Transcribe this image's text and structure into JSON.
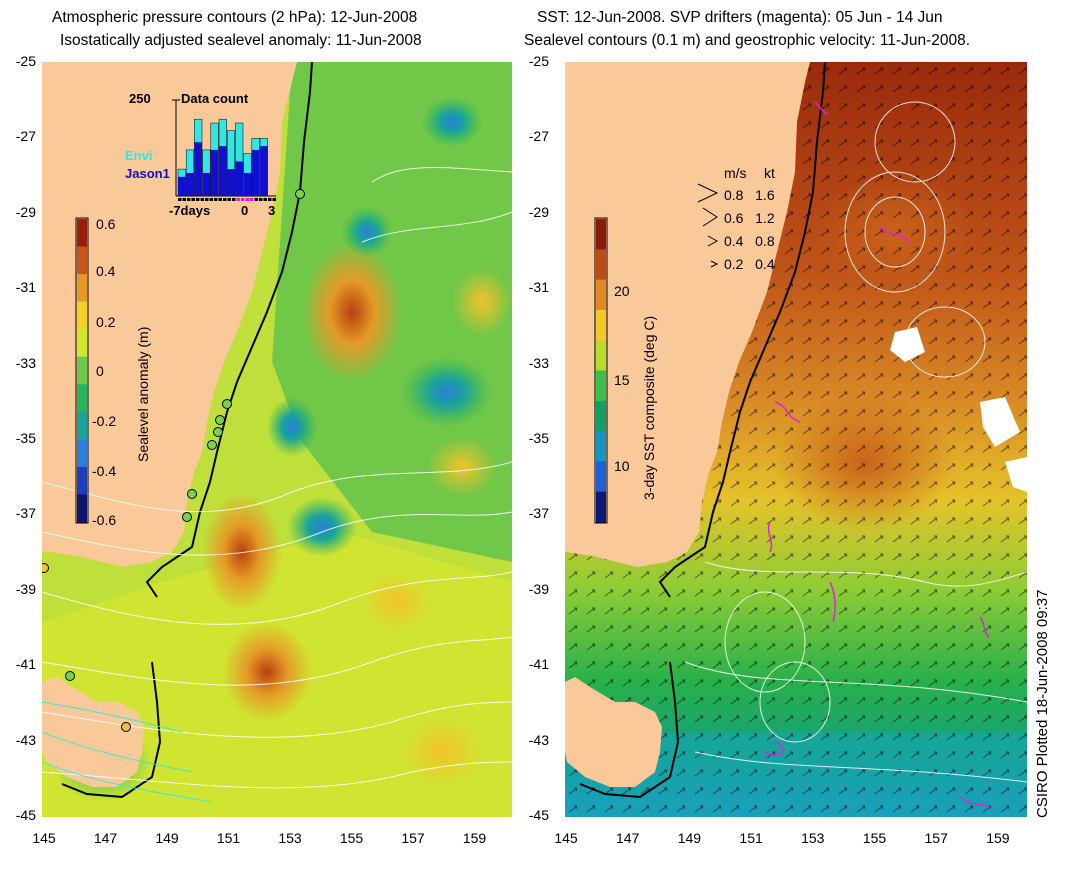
{
  "left_panel": {
    "title_line1": "Atmospheric pressure contours (2 hPa): 12-Jun-2008",
    "title_line2": "Isostatically adjusted sealevel anomaly: 11-Jun-2008",
    "colorbar": {
      "label": "Sealevel anomaly (m)",
      "ticks": [
        "0.6",
        "0.4",
        "0.2",
        "0",
        "-0.2",
        "-0.4",
        "-0.6"
      ],
      "colors": [
        "#9b1d0c",
        "#c8551a",
        "#e59a27",
        "#f4d02a",
        "#cfe82c",
        "#6cc84a",
        "#27b45c",
        "#1aa39a",
        "#2a7fd8",
        "#1b3fb8",
        "#0b1670"
      ]
    },
    "inset": {
      "title": "Data count",
      "max_label": "250",
      "legend_envi": "Envi",
      "legend_jason": "Jason1",
      "x_left": "-7days",
      "x_zero": "0",
      "x_right": "3",
      "envi_color": "#33e6e6",
      "jason_color": "#1010d0",
      "envi_values": [
        70,
        120,
        200,
        120,
        190,
        200,
        170,
        190,
        110,
        150,
        150
      ],
      "jason_values": [
        50,
        60,
        140,
        60,
        120,
        130,
        70,
        90,
        60,
        120,
        130
      ]
    }
  },
  "right_panel": {
    "title_line1": "SST: 12-Jun-2008. SVP drifters (magenta): 05 Jun - 14 Jun",
    "title_line2": "Sealevel contours (0.1 m) and geostrophic velocity: 11-Jun-2008.",
    "colorbar": {
      "label": "3-day SST composite (deg C)",
      "ticks": [
        "20",
        "15",
        "10"
      ],
      "colors": [
        "#8c1a0a",
        "#c04a14",
        "#e08a22",
        "#f3c82a",
        "#b6dc2c",
        "#3cc04a",
        "#10a066",
        "#1496c0",
        "#1f5fd8",
        "#0b1a78"
      ]
    },
    "velocity_legend": {
      "header_ms": "m/s",
      "header_kt": "kt",
      "rows": [
        {
          "ms": "0.8",
          "kt": "1.6"
        },
        {
          "ms": "0.6",
          "kt": "1.2"
        },
        {
          "ms": "0.4",
          "kt": "0.8"
        },
        {
          "ms": "0.2",
          "kt": "0.4"
        }
      ]
    }
  },
  "axes": {
    "y_ticks": [
      "-25",
      "-27",
      "-29",
      "-31",
      "-33",
      "-35",
      "-37",
      "-39",
      "-41",
      "-43",
      "-45"
    ],
    "x_ticks": [
      "145",
      "147",
      "149",
      "151",
      "153",
      "155",
      "157",
      "159"
    ]
  },
  "footer": {
    "plotted_label": "CSIRO Plotted 18-Jun-2008 09:37"
  },
  "colors": {
    "land": "#f9c99a",
    "coast_contour": "#000000",
    "pressure_contour": "#ffffff",
    "drifter": "#e020e0"
  }
}
